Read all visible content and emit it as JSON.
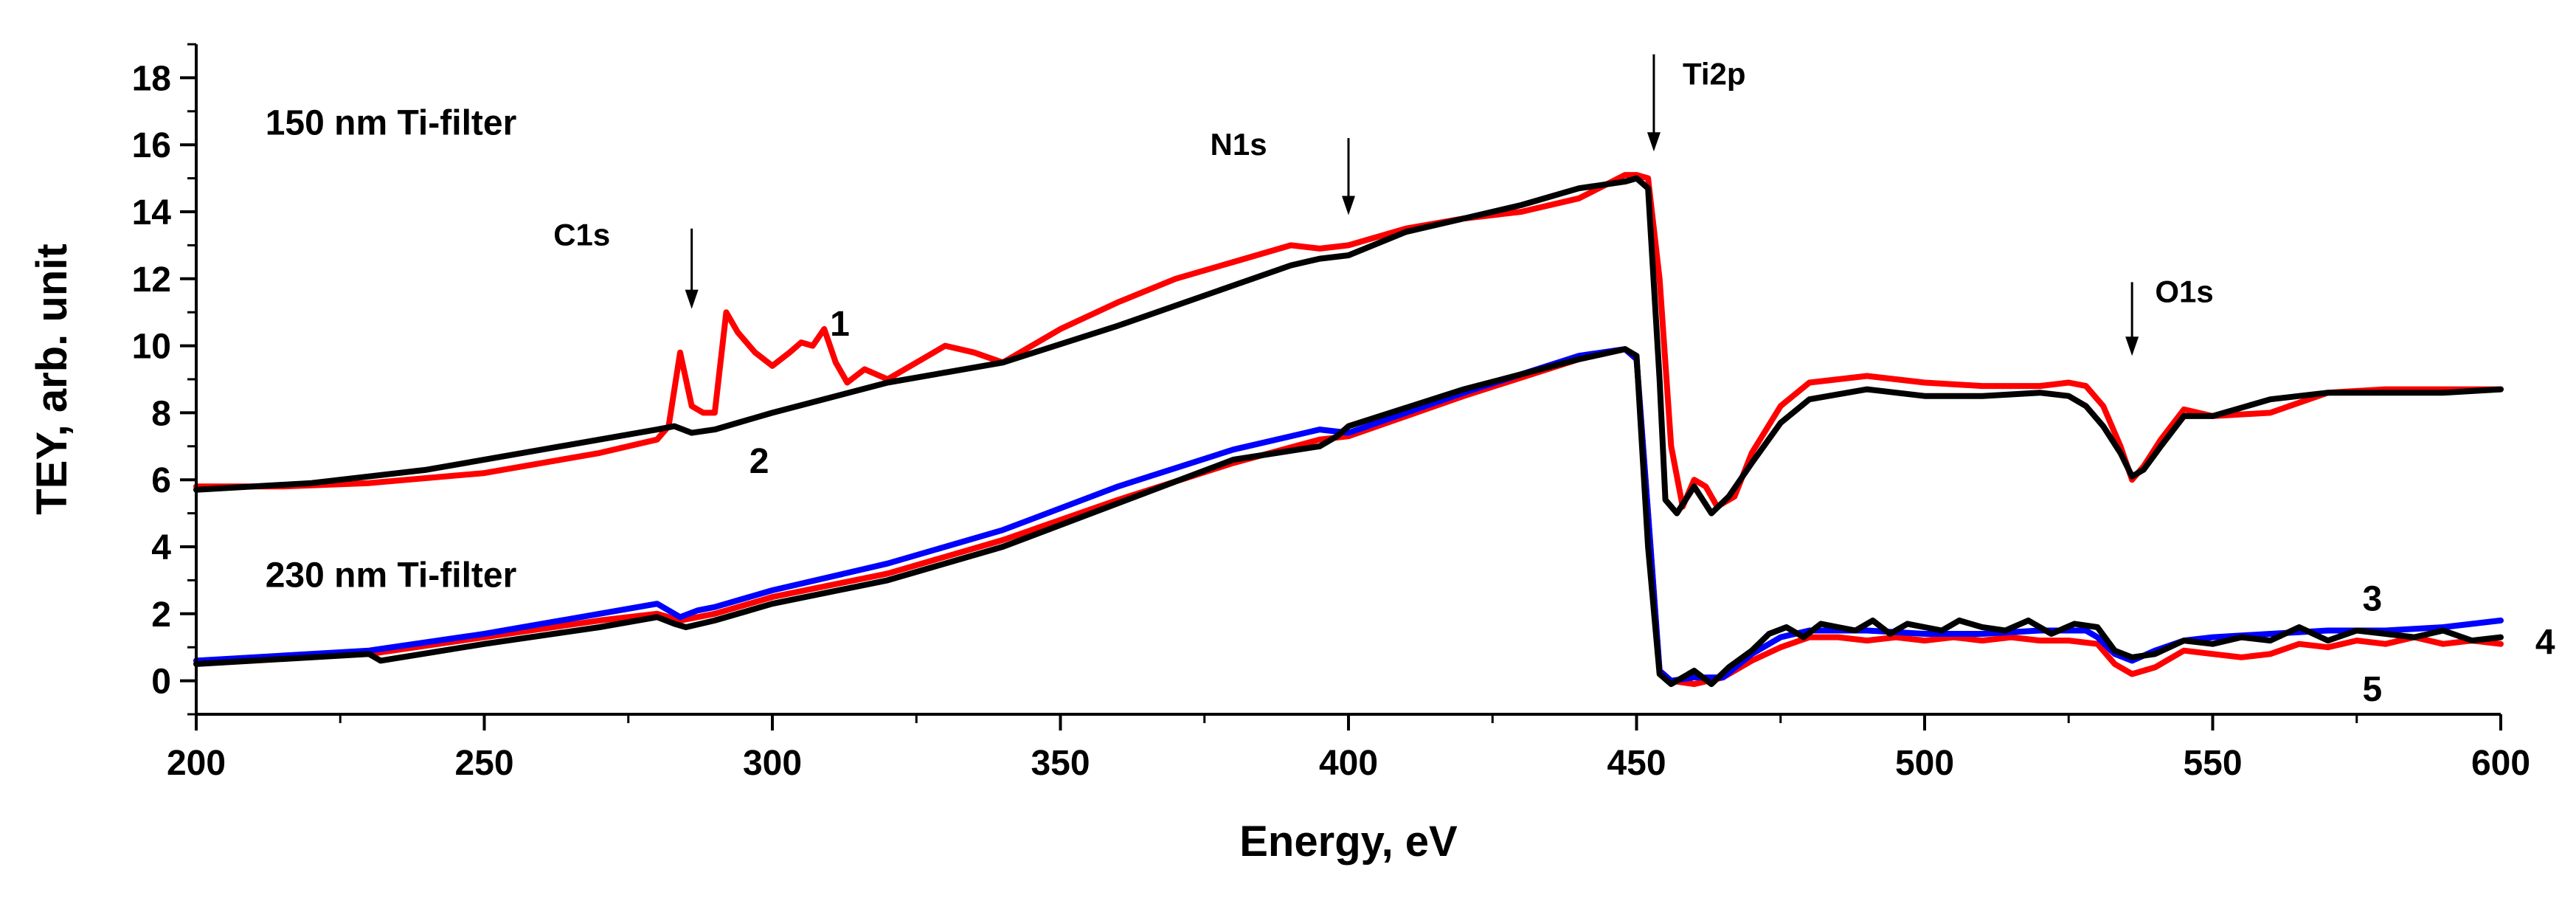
{
  "chart_data": {
    "type": "line",
    "title": "",
    "xlabel": "Energy, eV",
    "ylabel": "TEY,  arb. unit",
    "xlim": [
      200,
      600
    ],
    "ylim": [
      -1,
      19
    ],
    "x_ticks": [
      200,
      250,
      300,
      350,
      400,
      450,
      500,
      550,
      600
    ],
    "y_ticks": [
      0,
      2,
      4,
      6,
      8,
      10,
      12,
      14,
      16,
      18
    ],
    "grid": false,
    "group_labels": [
      {
        "text": "150 nm Ti-filter",
        "x": 212,
        "y": 16.3
      },
      {
        "text": "230 nm Ti-filter",
        "x": 212,
        "y": 2.8
      }
    ],
    "edge_markers": [
      {
        "label": "C1s",
        "energy": 286,
        "label_x": 262,
        "label_y": 13.0,
        "arrow_from": 13.5,
        "arrow_to": 11.1
      },
      {
        "label": "N1s",
        "energy": 400,
        "label_x": 376,
        "label_y": 15.7,
        "arrow_from": 16.2,
        "arrow_to": 13.9
      },
      {
        "label": "Ti2p",
        "energy": 453,
        "label_x": 458,
        "label_y": 17.8,
        "arrow_from": 18.7,
        "arrow_to": 15.8
      },
      {
        "label": "O1s",
        "energy": 536,
        "label_x": 540,
        "label_y": 11.3,
        "arrow_from": 11.9,
        "arrow_to": 9.7
      }
    ],
    "curve_labels": [
      {
        "text": "1",
        "x": 310,
        "y": 10.3
      },
      {
        "text": "2",
        "x": 296,
        "y": 6.2
      },
      {
        "text": "3",
        "x": 576,
        "y": 2.1
      },
      {
        "text": "4",
        "x": 606,
        "y": 0.8
      },
      {
        "text": "5",
        "x": 576,
        "y": -0.6
      }
    ],
    "series": [
      {
        "name": "1",
        "color": "#ff0000",
        "x": [
          200,
          215,
          230,
          250,
          270,
          280,
          282,
          284,
          286,
          288,
          290,
          292,
          294,
          297,
          300,
          303,
          305,
          307,
          309,
          311,
          313,
          316,
          320,
          325,
          330,
          335,
          340,
          350,
          360,
          370,
          380,
          390,
          395,
          400,
          410,
          420,
          430,
          440,
          448,
          450,
          452,
          454,
          456,
          458,
          460,
          462,
          464,
          467,
          470,
          475,
          480,
          490,
          500,
          510,
          520,
          525,
          528,
          531,
          534,
          536,
          538,
          541,
          545,
          550,
          560,
          570,
          580,
          590,
          600
        ],
        "y": [
          5.8,
          5.8,
          5.9,
          6.2,
          6.8,
          7.2,
          7.6,
          9.8,
          8.2,
          8.0,
          8.0,
          11.0,
          10.4,
          9.8,
          9.4,
          9.8,
          10.1,
          10.0,
          10.5,
          9.5,
          8.9,
          9.3,
          9.0,
          9.5,
          10.0,
          9.8,
          9.5,
          10.5,
          11.3,
          12.0,
          12.5,
          13.0,
          12.9,
          13.0,
          13.5,
          13.8,
          14.0,
          14.4,
          15.1,
          15.1,
          15.0,
          12.0,
          7.0,
          5.2,
          6.0,
          5.8,
          5.2,
          5.5,
          6.8,
          8.2,
          8.9,
          9.1,
          8.9,
          8.8,
          8.8,
          8.9,
          8.8,
          8.2,
          7.0,
          6.0,
          6.4,
          7.2,
          8.1,
          7.9,
          8.0,
          8.6,
          8.7,
          8.7,
          8.7
        ]
      },
      {
        "name": "2",
        "color": "#000000",
        "x": [
          200,
          220,
          240,
          260,
          280,
          283,
          286,
          290,
          294,
          300,
          320,
          340,
          360,
          380,
          390,
          395,
          400,
          410,
          420,
          430,
          440,
          448,
          450,
          452,
          454,
          455,
          457,
          460,
          463,
          466,
          470,
          475,
          480,
          490,
          500,
          510,
          520,
          525,
          528,
          531,
          534,
          536,
          538,
          541,
          545,
          550,
          560,
          570,
          580,
          590,
          600
        ],
        "y": [
          5.7,
          5.9,
          6.3,
          6.9,
          7.5,
          7.6,
          7.4,
          7.5,
          7.7,
          8.0,
          8.9,
          9.5,
          10.6,
          11.8,
          12.4,
          12.6,
          12.7,
          13.4,
          13.8,
          14.2,
          14.7,
          14.9,
          15.0,
          14.7,
          9.0,
          5.4,
          5.0,
          5.8,
          5.0,
          5.5,
          6.5,
          7.7,
          8.4,
          8.7,
          8.5,
          8.5,
          8.6,
          8.5,
          8.2,
          7.6,
          6.8,
          6.1,
          6.3,
          7.0,
          7.9,
          7.9,
          8.4,
          8.6,
          8.6,
          8.6,
          8.7
        ]
      },
      {
        "name": "3",
        "color": "#0000ff",
        "x": [
          200,
          230,
          250,
          270,
          280,
          284,
          287,
          290,
          300,
          320,
          340,
          360,
          380,
          395,
          400,
          420,
          440,
          448,
          450,
          452,
          454,
          456,
          460,
          465,
          470,
          475,
          480,
          490,
          500,
          510,
          520,
          528,
          530,
          533,
          536,
          540,
          545,
          550,
          560,
          570,
          580,
          590,
          600
        ],
        "y": [
          0.6,
          0.9,
          1.4,
          2.0,
          2.3,
          1.9,
          2.1,
          2.2,
          2.7,
          3.5,
          4.5,
          5.8,
          6.9,
          7.5,
          7.4,
          8.6,
          9.7,
          9.9,
          9.6,
          5.0,
          0.3,
          0.0,
          0.1,
          0.1,
          0.8,
          1.3,
          1.5,
          1.5,
          1.4,
          1.4,
          1.5,
          1.5,
          1.3,
          0.8,
          0.6,
          0.9,
          1.2,
          1.3,
          1.4,
          1.5,
          1.5,
          1.6,
          1.8
        ]
      },
      {
        "name": "4",
        "color": "#000000",
        "x": [
          200,
          230,
          232,
          250,
          270,
          280,
          283,
          285,
          290,
          300,
          320,
          340,
          360,
          380,
          395,
          398,
          400,
          420,
          440,
          448,
          450,
          452,
          454,
          456,
          460,
          463,
          466,
          470,
          473,
          476,
          479,
          482,
          485,
          488,
          491,
          494,
          497,
          500,
          503,
          506,
          510,
          514,
          518,
          522,
          526,
          530,
          533,
          536,
          540,
          545,
          550,
          555,
          560,
          565,
          570,
          575,
          580,
          585,
          590,
          595,
          600
        ],
        "y": [
          0.5,
          0.8,
          0.6,
          1.1,
          1.6,
          1.9,
          1.7,
          1.6,
          1.8,
          2.3,
          3.0,
          4.0,
          5.3,
          6.6,
          7.0,
          7.3,
          7.6,
          8.7,
          9.6,
          9.9,
          9.7,
          4.0,
          0.2,
          -0.1,
          0.3,
          -0.1,
          0.4,
          0.9,
          1.4,
          1.6,
          1.3,
          1.7,
          1.6,
          1.5,
          1.8,
          1.4,
          1.7,
          1.6,
          1.5,
          1.8,
          1.6,
          1.5,
          1.8,
          1.4,
          1.7,
          1.6,
          0.9,
          0.7,
          0.8,
          1.2,
          1.1,
          1.3,
          1.2,
          1.6,
          1.2,
          1.5,
          1.4,
          1.3,
          1.5,
          1.2,
          1.3
        ]
      },
      {
        "name": "5",
        "color": "#ff0000",
        "x": [
          200,
          230,
          250,
          270,
          280,
          284,
          287,
          290,
          300,
          320,
          340,
          360,
          380,
          395,
          400,
          420,
          440,
          448,
          450,
          452,
          454,
          456,
          460,
          465,
          470,
          475,
          480,
          485,
          490,
          495,
          500,
          505,
          510,
          515,
          520,
          525,
          530,
          533,
          536,
          540,
          545,
          550,
          555,
          560,
          565,
          570,
          575,
          580,
          585,
          590,
          595,
          600
        ],
        "y": [
          0.6,
          0.8,
          1.3,
          1.8,
          2.0,
          1.8,
          1.9,
          2.0,
          2.5,
          3.2,
          4.2,
          5.4,
          6.5,
          7.2,
          7.3,
          8.5,
          9.6,
          9.9,
          9.6,
          5.0,
          0.3,
          0.0,
          -0.1,
          0.1,
          0.6,
          1.0,
          1.3,
          1.3,
          1.2,
          1.3,
          1.2,
          1.3,
          1.2,
          1.3,
          1.2,
          1.2,
          1.1,
          0.5,
          0.2,
          0.4,
          0.9,
          0.8,
          0.7,
          0.8,
          1.1,
          1.0,
          1.2,
          1.1,
          1.3,
          1.1,
          1.2,
          1.1
        ]
      }
    ]
  }
}
